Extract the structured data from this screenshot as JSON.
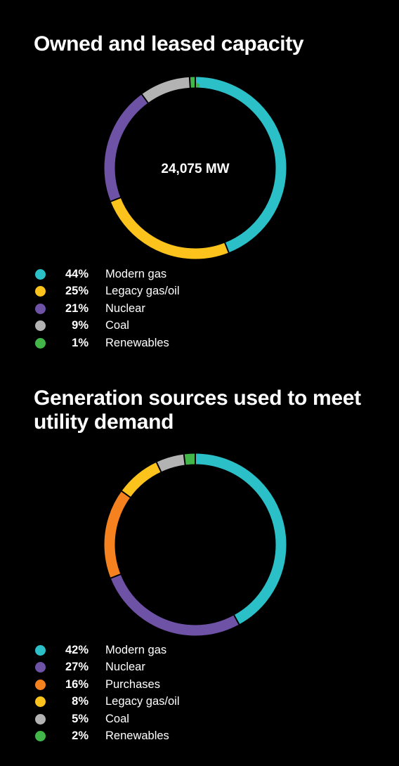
{
  "chart_data": [
    {
      "type": "pie",
      "title": "Owned and leased capacity",
      "center_label": "24,075 MW",
      "donut": true,
      "legend_position": "bottom-left",
      "categories": [
        "Modern gas",
        "Legacy gas/oil",
        "Nuclear",
        "Coal",
        "Renewables"
      ],
      "values": [
        44,
        25,
        21,
        9,
        1
      ],
      "value_labels": [
        "44%",
        "25%",
        "21%",
        "9%",
        "1%"
      ],
      "colors": [
        "#2bbfc7",
        "#fbc31b",
        "#6e52a5",
        "#b3b3b3",
        "#43b649"
      ]
    },
    {
      "type": "pie",
      "title": "Generation sources used to meet utility demand",
      "donut": true,
      "legend_position": "bottom-left",
      "categories": [
        "Modern gas",
        "Nuclear",
        "Purchases",
        "Legacy gas/oil",
        "Coal",
        "Renewables"
      ],
      "values": [
        42,
        27,
        16,
        8,
        5,
        2
      ],
      "value_labels": [
        "42%",
        "27%",
        "16%",
        "8%",
        "5%",
        "2%"
      ],
      "colors": [
        "#2bbfc7",
        "#6e52a5",
        "#f5821f",
        "#fbc31b",
        "#b3b3b3",
        "#43b649"
      ]
    }
  ]
}
